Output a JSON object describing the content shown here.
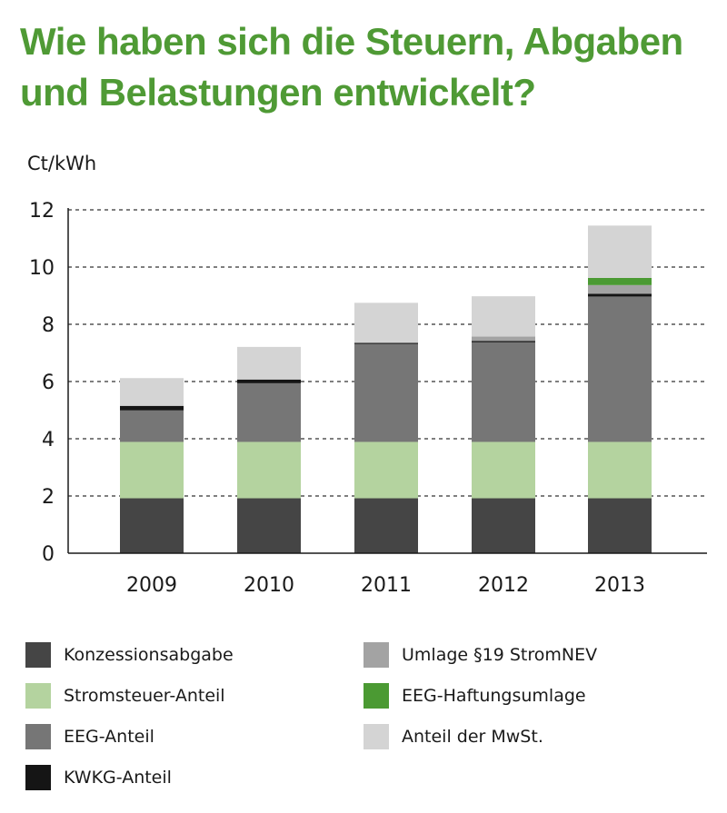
{
  "title_line1": "Wie haben sich die Steuern, Abgaben",
  "title_line2": "und Belastungen entwickelt?",
  "chart_data": {
    "type": "bar",
    "stacked": true,
    "unit_label": "Ct/kWh",
    "categories": [
      "2009",
      "2010",
      "2011",
      "2012",
      "2013"
    ],
    "ylim": [
      0,
      12
    ],
    "yticks": [
      0,
      2,
      4,
      6,
      8,
      10,
      12
    ],
    "grid": "dashed horizontal",
    "legend_position": "bottom",
    "series": [
      {
        "name": "Konzessionsabgabe",
        "color": "#454545",
        "values": [
          1.92,
          1.92,
          1.92,
          1.92,
          1.92
        ]
      },
      {
        "name": "Stromsteuer-Anteil",
        "color": "#b4d39f",
        "values": [
          1.97,
          1.97,
          1.97,
          1.97,
          1.97
        ]
      },
      {
        "name": "EEG-Anteil",
        "color": "#767676",
        "values": [
          1.1,
          2.05,
          3.42,
          3.48,
          5.08
        ]
      },
      {
        "name": "KWKG-Anteil",
        "color": "#151515",
        "values": [
          0.16,
          0.13,
          0.04,
          0.05,
          0.1
        ]
      },
      {
        "name": "Umlage §19 StromNEV",
        "color": "#a3a3a3",
        "values": [
          0,
          0,
          0,
          0.15,
          0.3
        ]
      },
      {
        "name": "EEG-Haftungsumlage",
        "color": "#4b9a33",
        "values": [
          0,
          0,
          0,
          0,
          0.25
        ]
      },
      {
        "name": "Anteil der MwSt.",
        "color": "#d4d4d4",
        "values": [
          0.97,
          1.14,
          1.4,
          1.41,
          1.83
        ]
      }
    ]
  },
  "legend_order": [
    0,
    4,
    1,
    5,
    2,
    6,
    3
  ]
}
